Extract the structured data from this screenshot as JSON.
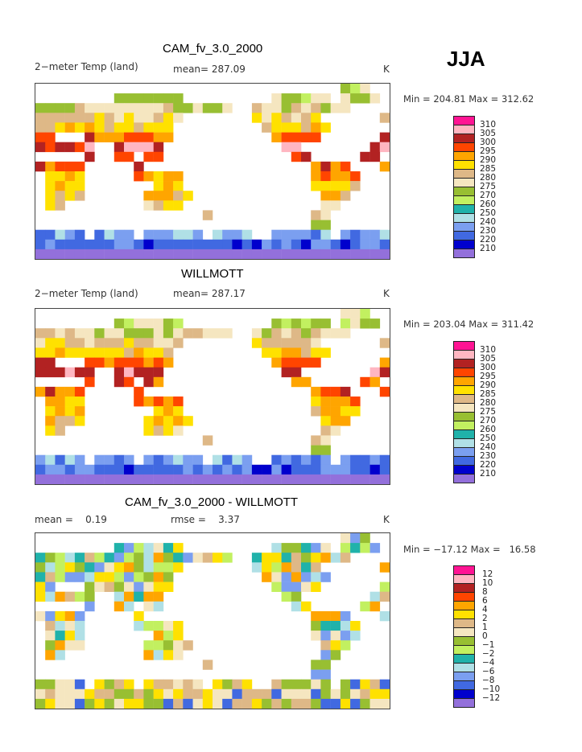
{
  "season": "JJA",
  "colors": [
    "#ff1493",
    "#ffb6c1",
    "#b22222",
    "#ff4500",
    "#ffa500",
    "#ffe100",
    "#deb887",
    "#f5e6c0",
    "#98bf32",
    "#c2f060",
    "#20b2aa",
    "#b0e0e6",
    "#7b9ff0",
    "#4169e1",
    "#0000cd",
    "#9370db"
  ],
  "panels": [
    {
      "title": "CAM_fv_3.0_2000",
      "left": "2−meter Temp (land)",
      "middle": "mean= 287.09",
      "units": "K",
      "minmax": "Min = 204.81 Max = 312.62",
      "levels": [
        "310",
        "305",
        "300",
        "295",
        "290",
        "285",
        "280",
        "275",
        "270",
        "260",
        "250",
        "240",
        "230",
        "220",
        "210"
      ]
    },
    {
      "title": "WILLMOTT",
      "left": "2−meter Temp (land)",
      "middle": "mean= 287.17",
      "units": "K",
      "minmax": "Min = 203.04 Max = 311.42",
      "levels": [
        "310",
        "305",
        "300",
        "295",
        "290",
        "285",
        "280",
        "275",
        "270",
        "260",
        "250",
        "240",
        "230",
        "220",
        "210"
      ]
    },
    {
      "title": "CAM_fv_3.0_2000 - WILLMOTT",
      "left": "mean =    0.19",
      "middle": "rmse =    3.37",
      "units": "K",
      "minmax": "Min = −17.12 Max =   16.58",
      "levels": [
        "12",
        "10",
        "8",
        "6",
        "4",
        "2",
        "1",
        "0",
        "−1",
        "−2",
        "−4",
        "−6",
        "−8",
        "−10",
        "−12"
      ]
    }
  ]
}
